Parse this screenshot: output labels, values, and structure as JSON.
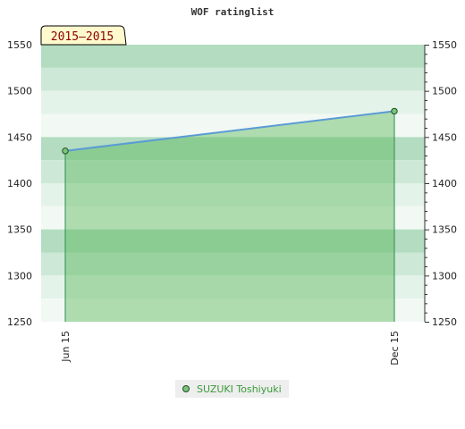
{
  "chart_data": {
    "type": "area",
    "title": "WOF ratinglist",
    "badge": "2015–2015",
    "x": [
      "Jun 15",
      "Dec 15"
    ],
    "series": [
      {
        "name": "SUZUKI Toshiyuki",
        "values": [
          1435,
          1478
        ]
      }
    ],
    "ylim": [
      1250,
      1550
    ],
    "yticks": [
      1250,
      1300,
      1350,
      1400,
      1450,
      1500,
      1550
    ],
    "grid": true,
    "legend_position": "bottom-center",
    "colors": {
      "line": "#5b9bd5",
      "marker_fill": "#7cc47c",
      "marker_stroke": "#1f4f1f",
      "area_fill": "#5cb85c",
      "drop_line": "#2e8b57",
      "bands_dark": "#b3dcc0",
      "bands_mid": "#cde8d6",
      "bands_light": "#e4f3e9",
      "bands_lightest": "#f2f9f4",
      "badge_bg": "#fffacd"
    }
  }
}
